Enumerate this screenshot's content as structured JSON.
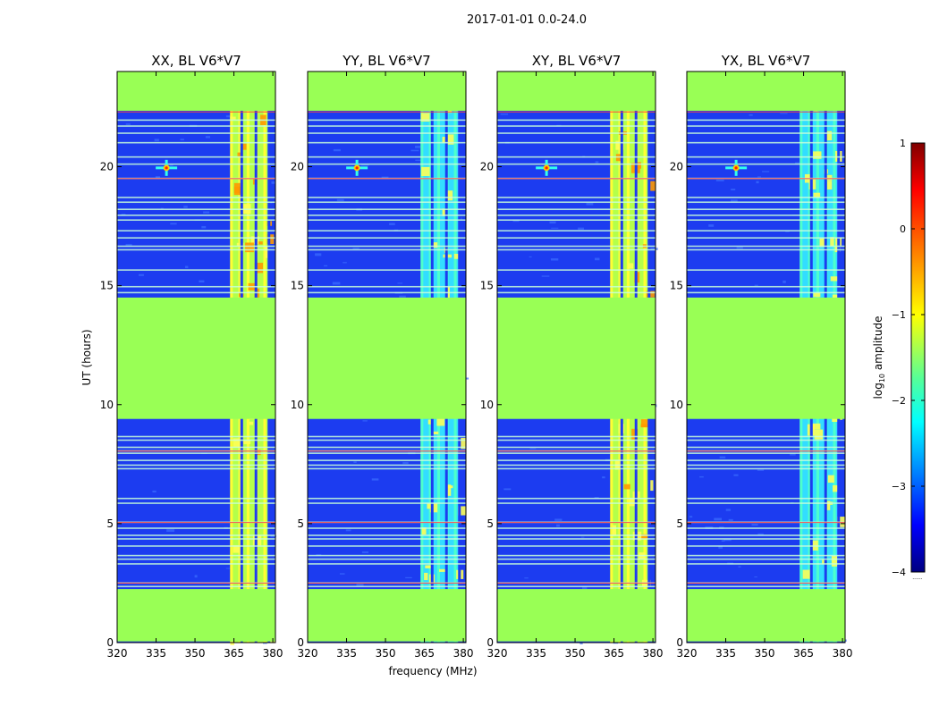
{
  "figure": {
    "suptitle": "2017-01-01 0.0-24.0"
  },
  "chart_data": {
    "type": "heatmap",
    "description": "Waterfall plots: amplitude vs frequency and UT, four polarization products",
    "xlabel": "frequency (MHz)",
    "ylabel": "UT (hours)",
    "xlim": [
      320,
      381
    ],
    "ylim": [
      0,
      24
    ],
    "xticks": [
      320,
      335,
      350,
      365,
      380
    ],
    "yticks": [
      0,
      5,
      10,
      15,
      20
    ],
    "panels": [
      {
        "title": "XX, BL V6*V7",
        "pol": "XX",
        "intensity": 1.0
      },
      {
        "title": "YY, BL V6*V7",
        "pol": "YY",
        "intensity": 0.55
      },
      {
        "title": "XY, BL V6*V7",
        "pol": "XY",
        "intensity": 0.9
      },
      {
        "title": "YX, BL V6*V7",
        "pol": "YX",
        "intensity": 0.5
      }
    ],
    "flagged_ut_ranges": [
      [
        0.05,
        2.25
      ],
      [
        9.4,
        14.5
      ],
      [
        22.35,
        24
      ]
    ],
    "rfi_band_mhz": [
      363.5,
      378.5
    ],
    "rfi_gap_channels_mhz": [
      368.0,
      373.5,
      378.5
    ],
    "source_feature": {
      "freq_mhz": 339,
      "ut_hours": 19.95
    },
    "flagged_line_uts": [
      2.35,
      2.5,
      3.3,
      3.5,
      3.65,
      4.05,
      4.35,
      4.5,
      4.8,
      5.05,
      5.85,
      6.05,
      7.3,
      7.45,
      7.65,
      7.95,
      8.05,
      8.2,
      8.5,
      8.65,
      14.7,
      14.95,
      15.65,
      16.5,
      16.65,
      17.0,
      17.3,
      17.75,
      17.95,
      18.2,
      18.5,
      18.7,
      19.5,
      20.1,
      20.4,
      21.0,
      21.4,
      21.7,
      21.95
    ],
    "red_line_uts": [
      2.5,
      5.05,
      8.05,
      19.5,
      22.3
    ],
    "colorbar": {
      "label_prefix": "log",
      "label_sub": "10",
      "label_suffix": " amplitude",
      "vmin": -4,
      "vmax": 1,
      "ticks": [
        1,
        0,
        -1,
        -2,
        -3,
        -4
      ],
      "tick_labels": [
        "1",
        "0",
        "−1",
        "−2",
        "−3",
        "−4"
      ],
      "footnote": "......"
    },
    "colormap": "jet",
    "flag_color": "#99ff55"
  }
}
